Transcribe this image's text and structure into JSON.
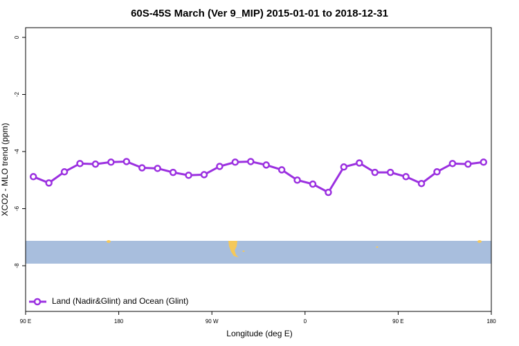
{
  "chart_data": {
    "type": "line",
    "title": "60S-45S March (Ver 9_MIP)   2015-01-01 to 2018-12-31",
    "x_label": "Longitude (deg E)",
    "y_label": "XCO2 - MLO trend (ppm)",
    "xlim": [
      90,
      540
    ],
    "ylim": [
      -9.6,
      0.34
    ],
    "xticks": [
      {
        "value": 90,
        "label": "90 E"
      },
      180,
      {
        "value": 270,
        "label": "90 W"
      },
      {
        "value": 360,
        "label": "0"
      },
      {
        "value": 450,
        "label": "90 E"
      },
      {
        "value": 540,
        "label": "180"
      }
    ],
    "yticks": [
      0,
      -2,
      -4,
      -6,
      -8
    ],
    "x": [
      97.5,
      112.5,
      127.5,
      142.5,
      157.5,
      172.5,
      187.5,
      202.5,
      217.5,
      232.5,
      247.5,
      262.5,
      277.5,
      292.5,
      307.5,
      322.5,
      337.5,
      352.5,
      367.5,
      382.5,
      397.5,
      412.5,
      427.5,
      442.5,
      457.5,
      472.5,
      487.5,
      502.5,
      517.5,
      532.5
    ],
    "series": [
      {
        "name": "Land (Nadir&Glint) and Ocean (Glint)",
        "color": "#9b30e0",
        "values": [
          -4.88,
          -5.1,
          -4.71,
          -4.42,
          -4.44,
          -4.37,
          -4.35,
          -4.57,
          -4.59,
          -4.73,
          -4.83,
          -4.81,
          -4.52,
          -4.37,
          -4.35,
          -4.47,
          -4.64,
          -5.0,
          -5.14,
          -5.43,
          -4.54,
          -4.4,
          -4.73,
          -4.73,
          -4.88,
          -5.12,
          -4.71,
          -4.42,
          -4.44,
          -4.37
        ]
      }
    ],
    "legend": "bottom-left"
  }
}
